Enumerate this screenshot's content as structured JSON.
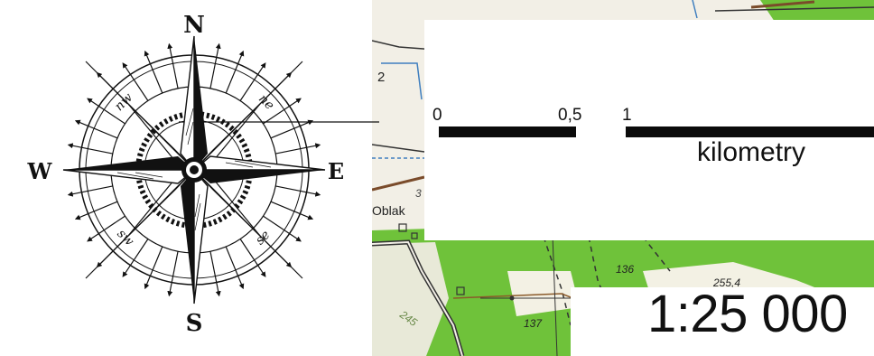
{
  "compass": {
    "north": "N",
    "south": "S",
    "east": "E",
    "west": "W",
    "northeast": "ne",
    "northwest": "nw",
    "southeast": "se",
    "southwest": "sw"
  },
  "scale_bar": {
    "tick_0": "0",
    "tick_05": "0,5",
    "tick_1": "1",
    "unit": "kilometry"
  },
  "ratio": "1:25 000",
  "map_labels": {
    "village": "Oblak",
    "elevation_1": "136",
    "elevation_2": "137",
    "elevation_3": "245",
    "elevation_4": "255,4",
    "number_1": "2",
    "number_2": "3"
  },
  "colors": {
    "forest": "#6fc23a",
    "paper": "#f2efe6",
    "ink": "#0b0b0b",
    "road": "#333333"
  }
}
